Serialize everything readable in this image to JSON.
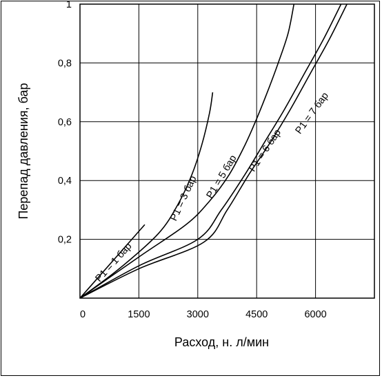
{
  "chart_data": {
    "type": "line",
    "title": "",
    "xlabel": "Расход, н. л/мин",
    "ylabel": "Перепад давления, бар",
    "xlim": [
      0,
      7500
    ],
    "ylim": [
      0,
      1
    ],
    "xticks": [
      0,
      1500,
      3000,
      4500,
      6000
    ],
    "xtick_labels": [
      "0",
      "1500",
      "3000",
      "4500",
      "6000"
    ],
    "yticks": [
      0.2,
      0.4,
      0.6,
      0.8,
      1
    ],
    "ytick_labels": [
      "0,2",
      "0,4",
      "0,6",
      "0,8",
      "1"
    ],
    "grid": true,
    "colors": {
      "line": "#000000",
      "grid": "#000000"
    },
    "series": [
      {
        "name": "P1 = 1 бар",
        "x": [
          0,
          1650
        ],
        "y": [
          0,
          0.25
        ]
      },
      {
        "name": "P1 = 3 бар",
        "x": [
          0,
          1000,
          2000,
          2500,
          2850,
          3100,
          3300,
          3380
        ],
        "y": [
          0,
          0.1,
          0.22,
          0.32,
          0.42,
          0.52,
          0.63,
          0.7
        ]
      },
      {
        "name": "P1 = 5 бар",
        "x": [
          0,
          1500,
          2700,
          3300,
          3800,
          4200,
          4500,
          4800,
          5050,
          5300,
          5450
        ],
        "y": [
          0,
          0.14,
          0.25,
          0.33,
          0.42,
          0.52,
          0.61,
          0.71,
          0.8,
          0.9,
          1.0
        ]
      },
      {
        "name": "P1 = 6 бар",
        "x": [
          0,
          1500,
          3000,
          3600,
          4200,
          4700,
          5200,
          5700,
          6200,
          6650
        ],
        "y": [
          0,
          0.11,
          0.2,
          0.3,
          0.42,
          0.53,
          0.64,
          0.76,
          0.88,
          1.0
        ]
      },
      {
        "name": "P1 = 7 бар",
        "x": [
          0,
          1500,
          3150,
          3750,
          4300,
          4850,
          5350,
          5850,
          6350,
          6800
        ],
        "y": [
          0,
          0.1,
          0.19,
          0.3,
          0.42,
          0.53,
          0.64,
          0.76,
          0.88,
          1.0
        ]
      }
    ],
    "curve_labels": [
      {
        "text": "P1 = 1 бар",
        "series": 0
      },
      {
        "text": "P1 = 3 бар",
        "series": 1
      },
      {
        "text": "P1 = 5 бар",
        "series": 2
      },
      {
        "text": "P1 = 6 бар",
        "series": 3
      },
      {
        "text": "P1 = 7 бар",
        "series": 4
      }
    ]
  }
}
